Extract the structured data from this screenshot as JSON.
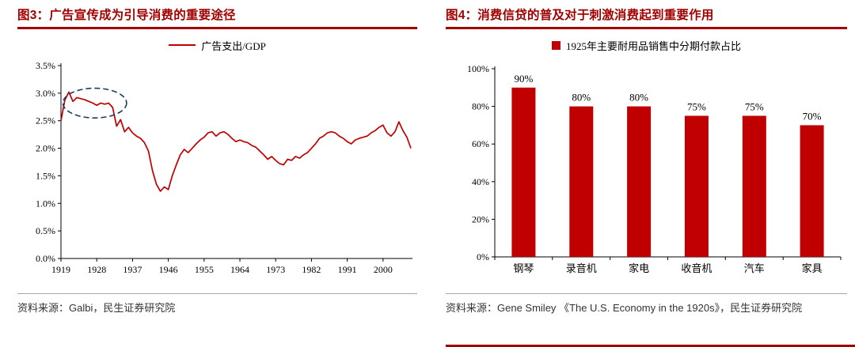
{
  "page": {
    "accent_color": "#a00000",
    "series_color": "#c00000",
    "highlight_color": "#1f3864"
  },
  "left_panel": {
    "title": "图3：广告宣传成为引导消费的重要途径",
    "legend": "广告支出/GDP",
    "source": "资料来源：Galbi，民生证券研究院"
  },
  "right_panel": {
    "title": "图4：消费信贷的普及对于刺激消费起到重要作用",
    "legend": "1925年主要耐用品销售中分期付款占比",
    "source": "资料来源：Gene Smiley 《The U.S. Economy in the 1920s》，民生证券研究院"
  },
  "chart_data": [
    {
      "type": "line",
      "title": "广告支出/GDP",
      "xlabel": "",
      "ylabel": "",
      "x_start": 1919,
      "x_end": 2007,
      "values": [
        2.5,
        2.88,
        3.02,
        2.85,
        2.92,
        2.9,
        2.88,
        2.85,
        2.82,
        2.78,
        2.82,
        2.8,
        2.82,
        2.74,
        2.4,
        2.52,
        2.3,
        2.38,
        2.28,
        2.22,
        2.18,
        2.1,
        1.95,
        1.6,
        1.35,
        1.22,
        1.3,
        1.25,
        1.5,
        1.7,
        1.88,
        1.98,
        1.92,
        2.0,
        2.08,
        2.15,
        2.2,
        2.28,
        2.3,
        2.22,
        2.28,
        2.3,
        2.25,
        2.18,
        2.12,
        2.15,
        2.12,
        2.1,
        2.05,
        2.02,
        1.95,
        1.88,
        1.8,
        1.85,
        1.78,
        1.72,
        1.7,
        1.8,
        1.78,
        1.85,
        1.82,
        1.88,
        1.92,
        2.0,
        2.08,
        2.18,
        2.22,
        2.28,
        2.3,
        2.28,
        2.22,
        2.18,
        2.12,
        2.08,
        2.15,
        2.18,
        2.2,
        2.22,
        2.28,
        2.32,
        2.38,
        2.42,
        2.28,
        2.22,
        2.3,
        2.48,
        2.32,
        2.2,
        2.0
      ],
      "xticks": [
        1919,
        1928,
        1937,
        1946,
        1955,
        1964,
        1973,
        1982,
        1991,
        2000
      ],
      "yticks": [
        0,
        0.5,
        1,
        1.5,
        2,
        2.5,
        3,
        3.5
      ],
      "ylim": [
        0,
        3.5
      ],
      "ytick_labels": [
        "0.0%",
        "0.5%",
        "1.0%",
        "1.5%",
        "2.0%",
        "2.5%",
        "3.0%",
        "3.5%"
      ],
      "grid": false,
      "legend_position": "top",
      "color": "#c00000",
      "highlight_ellipse": {
        "cx": 1927.5,
        "cy": 2.82,
        "rx": 8,
        "ry": 0.27,
        "color": "#1f3864",
        "style": "dashed"
      }
    },
    {
      "type": "bar",
      "title": "1925年主要耐用品销售中分期付款占比",
      "xlabel": "",
      "ylabel": "",
      "categories": [
        "钢琴",
        "录音机",
        "家电",
        "收音机",
        "汽车",
        "家具"
      ],
      "values": [
        90,
        80,
        80,
        75,
        75,
        70
      ],
      "value_labels": [
        "90%",
        "80%",
        "80%",
        "75%",
        "75%",
        "70%"
      ],
      "yticks": [
        0,
        20,
        40,
        60,
        80,
        100
      ],
      "ylim": [
        0,
        100
      ],
      "grid": false,
      "legend_position": "top",
      "color": "#c00000"
    }
  ]
}
